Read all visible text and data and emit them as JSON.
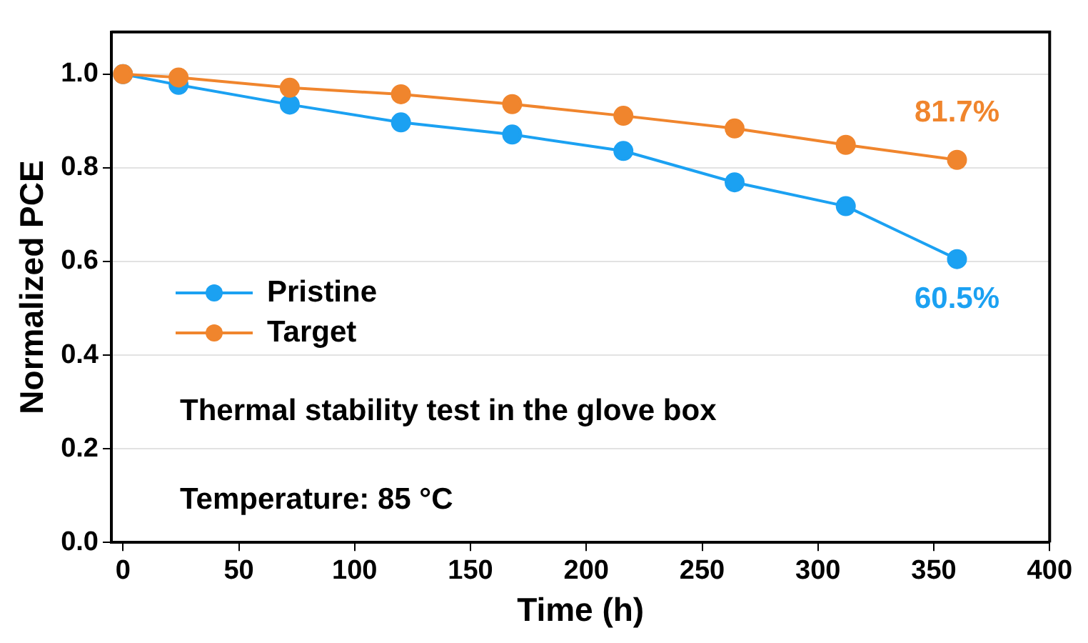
{
  "chart_data": {
    "type": "line",
    "xlabel": "Time (h)",
    "ylabel": "Normalized PCE",
    "x": [
      0,
      24,
      72,
      120,
      168,
      216,
      264,
      312,
      360
    ],
    "series": [
      {
        "name": "Pristine",
        "color": "#1ba1f2",
        "values": [
          1.0,
          0.977,
          0.935,
          0.897,
          0.871,
          0.836,
          0.769,
          0.718,
          0.605
        ]
      },
      {
        "name": "Target",
        "color": "#f0852d",
        "values": [
          1.0,
          0.993,
          0.971,
          0.957,
          0.936,
          0.911,
          0.884,
          0.849,
          0.817
        ]
      }
    ],
    "xlim": [
      -5,
      400
    ],
    "xticks": [
      0,
      50,
      100,
      150,
      200,
      250,
      300,
      350,
      400
    ],
    "ylim": [
      0,
      1.09
    ],
    "yticks": [
      {
        "value": 0,
        "label": "0.0"
      },
      {
        "value": 0.2,
        "label": "0.2"
      },
      {
        "value": 0.4,
        "label": "0.4"
      },
      {
        "value": 0.6,
        "label": "0.6"
      },
      {
        "value": 0.8,
        "label": "0.8"
      },
      {
        "value": 1,
        "label": "1.0"
      }
    ],
    "grid": "y",
    "legend": "left",
    "marker": "circle",
    "line_style": "solid",
    "annotations": [
      {
        "text": "81.7%",
        "x": 360,
        "y": 0.817
      },
      {
        "text": "60.5%",
        "x": 360,
        "y": 0.605
      },
      "Thermal stability test in the glove box",
      "Temperature: 85 °C"
    ]
  }
}
